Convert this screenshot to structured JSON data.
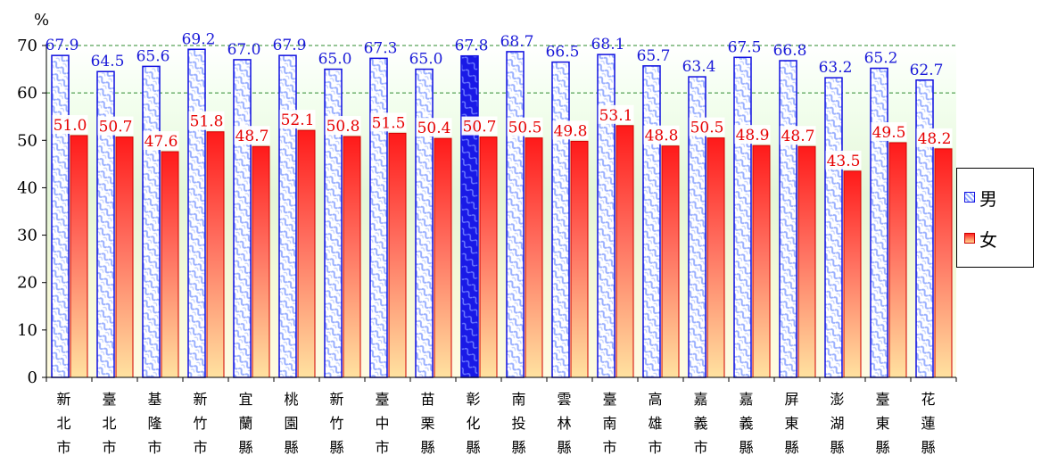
{
  "chart_data": {
    "type": "bar",
    "unit_label": "%",
    "ylim": [
      0,
      70
    ],
    "yticks": [
      0,
      10,
      20,
      30,
      40,
      50,
      60,
      70
    ],
    "categories": [
      "新北市",
      "臺北市",
      "基隆市",
      "新竹市",
      "宜蘭縣",
      "桃園縣",
      "新竹縣",
      "臺中市",
      "苗栗縣",
      "彰化縣",
      "南投縣",
      "雲林縣",
      "臺南市",
      "高雄市",
      "嘉義市",
      "嘉義縣",
      "屏東縣",
      "澎湖縣",
      "臺東縣",
      "花蓮縣"
    ],
    "series": [
      {
        "name": "男",
        "values": [
          67.9,
          64.5,
          65.6,
          69.2,
          67.0,
          67.9,
          65.0,
          67.3,
          65.0,
          67.8,
          68.7,
          66.5,
          68.1,
          65.7,
          63.4,
          67.5,
          66.8,
          63.2,
          65.2,
          62.7
        ],
        "labels": [
          "67.9",
          "64.5",
          "65.6",
          "69.2",
          "67.0",
          "67.9",
          "65.0",
          "67.3",
          "65.0",
          "67.8",
          "68.7",
          "66.5",
          "68.1",
          "65.7",
          "63.4",
          "67.5",
          "66.8",
          "63.2",
          "65.2",
          "62.7"
        ]
      },
      {
        "name": "女",
        "values": [
          51.0,
          50.7,
          47.6,
          51.8,
          48.7,
          52.1,
          50.8,
          51.5,
          50.4,
          50.7,
          50.5,
          49.8,
          53.1,
          48.8,
          50.5,
          48.9,
          48.7,
          43.5,
          49.5,
          48.2
        ],
        "labels": [
          "51.0",
          "50.7",
          "47.6",
          "51.8",
          "48.7",
          "52.1",
          "50.8",
          "51.5",
          "50.4",
          "50.7",
          "50.5",
          "49.8",
          "53.1",
          "48.8",
          "50.5",
          "48.9",
          "48.7",
          "43.5",
          "49.5",
          "48.2"
        ]
      }
    ],
    "highlight_category": "彰化縣",
    "grid": "dashed at 60 and 70",
    "legend": "right",
    "colors": {
      "male_border": "#1010e0",
      "male_pattern": "#9ab0ff",
      "male_highlight": "#1a1ae6",
      "male_label": "#1a1ad8",
      "female_top": "#ff1a1a",
      "female_bottom": "#ffd890",
      "female_label": "#e60000",
      "grid": "#2e8b2e"
    }
  },
  "legend": {
    "items": [
      {
        "label": "男"
      },
      {
        "label": "女"
      }
    ]
  }
}
